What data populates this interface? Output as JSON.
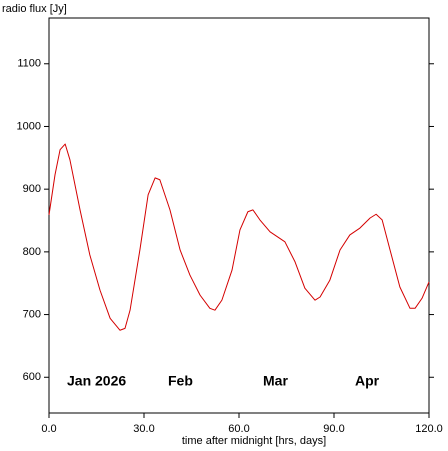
{
  "chart_data": {
    "type": "line",
    "ylabel": "radio flux [Jy]",
    "xlabel": "time after midnight [hrs, days]",
    "annotations": [
      "Jan 2026",
      "Feb",
      "Mar",
      "Apr"
    ],
    "xlim": [
      0,
      120
    ],
    "ylim": [
      543,
      1173
    ],
    "xticks": [
      {
        "value": 0,
        "label": "0.0"
      },
      {
        "value": 30,
        "label": "30.0"
      },
      {
        "value": 60,
        "label": "60.0"
      },
      {
        "value": 90,
        "label": "90.0"
      },
      {
        "value": 120,
        "label": "120.0"
      }
    ],
    "yticks": [
      600,
      700,
      800,
      900,
      1000,
      1100
    ],
    "x": [
      0,
      1.9,
      3.5,
      5.1,
      6.6,
      9.8,
      12.9,
      16.1,
      19.3,
      22.4,
      24,
      25.6,
      28.7,
      31.3,
      33.5,
      35,
      38.2,
      41.4,
      44.5,
      47.7,
      50.8,
      52.4,
      54.6,
      57.8,
      60.3,
      62.8,
      64.4,
      66.6,
      69.8,
      74.5,
      77.7,
      80.8,
      84,
      85.6,
      88.7,
      91.9,
      95,
      98.2,
      101.4,
      103.3,
      105.2,
      107.7,
      110.8,
      114,
      115.6,
      117.8,
      120
    ],
    "series": [
      {
        "color": "#d40000",
        "values": [
          859,
          923,
          963,
          972,
          947,
          867,
          795,
          739,
          694,
          675,
          678,
          707,
          803,
          891,
          918,
          915,
          867,
          803,
          763,
          731,
          710,
          707,
          723,
          771,
          835,
          864,
          867,
          851,
          832,
          816,
          784,
          742,
          723,
          728,
          755,
          803,
          827,
          838,
          854,
          860,
          851,
          803,
          744,
          710,
          710,
          726,
          752
        ]
      }
    ]
  }
}
